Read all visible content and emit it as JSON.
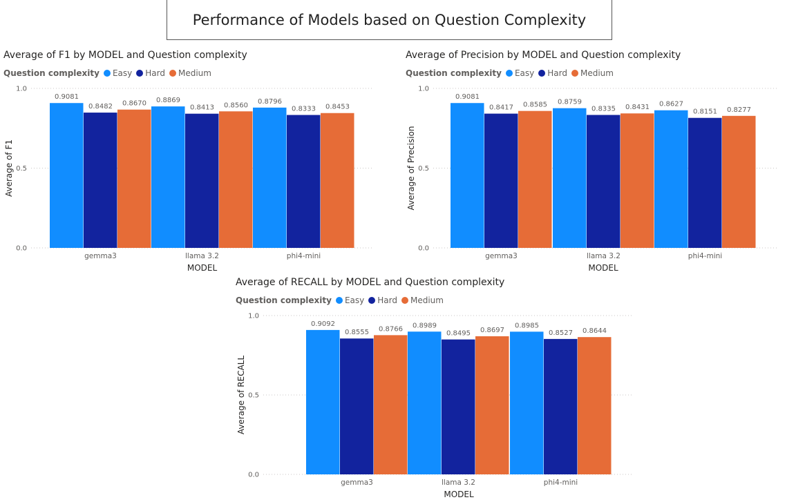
{
  "page_title": "Performance of Models based on Question Complexity",
  "colors": {
    "Easy": "#118dff",
    "Hard": "#12239e",
    "Medium": "#e66c37",
    "grid": "#c8c6c4"
  },
  "legend": {
    "title": "Question complexity",
    "items": [
      "Easy",
      "Hard",
      "Medium"
    ]
  },
  "chart_data": [
    {
      "id": "f1",
      "type": "bar",
      "title": "Average of F1 by MODEL and Question complexity",
      "xlabel": "MODEL",
      "ylabel": "Average of F1",
      "ylim": [
        0,
        1
      ],
      "yticks": [
        "0.0",
        "0.5",
        "1.0"
      ],
      "categories": [
        "gemma3",
        "llama 3.2",
        "phi4-mini"
      ],
      "series": [
        {
          "name": "Easy",
          "values": [
            0.9081,
            0.8869,
            0.8796
          ],
          "labels": [
            "0.9081",
            "0.8869",
            "0.8796"
          ]
        },
        {
          "name": "Hard",
          "values": [
            0.8482,
            0.8413,
            0.8333
          ],
          "labels": [
            "0.8482",
            "0.8413",
            "0.8333"
          ]
        },
        {
          "name": "Medium",
          "values": [
            0.867,
            0.856,
            0.8453
          ],
          "labels": [
            "0.8670",
            "0.8560",
            "0.8453"
          ]
        }
      ],
      "grid": true,
      "legend_position": "top-left"
    },
    {
      "id": "precision",
      "type": "bar",
      "title": "Average of Precision by MODEL and Question complexity",
      "xlabel": "MODEL",
      "ylabel": "Average of Precision",
      "ylim": [
        0,
        1
      ],
      "yticks": [
        "0.0",
        "0.5",
        "1.0"
      ],
      "categories": [
        "gemma3",
        "llama 3.2",
        "phi4-mini"
      ],
      "series": [
        {
          "name": "Easy",
          "values": [
            0.9081,
            0.8759,
            0.8627
          ],
          "labels": [
            "0.9081",
            "0.8759",
            "0.8627"
          ]
        },
        {
          "name": "Hard",
          "values": [
            0.8417,
            0.8335,
            0.8151
          ],
          "labels": [
            "0.8417",
            "0.8335",
            "0.8151"
          ]
        },
        {
          "name": "Medium",
          "values": [
            0.8585,
            0.8431,
            0.8277
          ],
          "labels": [
            "0.8585",
            "0.8431",
            "0.8277"
          ]
        }
      ],
      "grid": true,
      "legend_position": "top-left"
    },
    {
      "id": "recall",
      "type": "bar",
      "title": "Average of RECALL by MODEL and Question complexity",
      "xlabel": "MODEL",
      "ylabel": "Average of RECALL",
      "ylim": [
        0,
        1
      ],
      "yticks": [
        "0.0",
        "0.5",
        "1.0"
      ],
      "categories": [
        "gemma3",
        "llama 3.2",
        "phi4-mini"
      ],
      "series": [
        {
          "name": "Easy",
          "values": [
            0.9092,
            0.8989,
            0.8985
          ],
          "labels": [
            "0.9092",
            "0.8989",
            "0.8985"
          ]
        },
        {
          "name": "Hard",
          "values": [
            0.8555,
            0.8495,
            0.8527
          ],
          "labels": [
            "0.8555",
            "0.8495",
            "0.8527"
          ]
        },
        {
          "name": "Medium",
          "values": [
            0.8766,
            0.8697,
            0.8644
          ],
          "labels": [
            "0.8766",
            "0.8697",
            "0.8644"
          ]
        }
      ],
      "grid": true,
      "legend_position": "top-left"
    }
  ]
}
